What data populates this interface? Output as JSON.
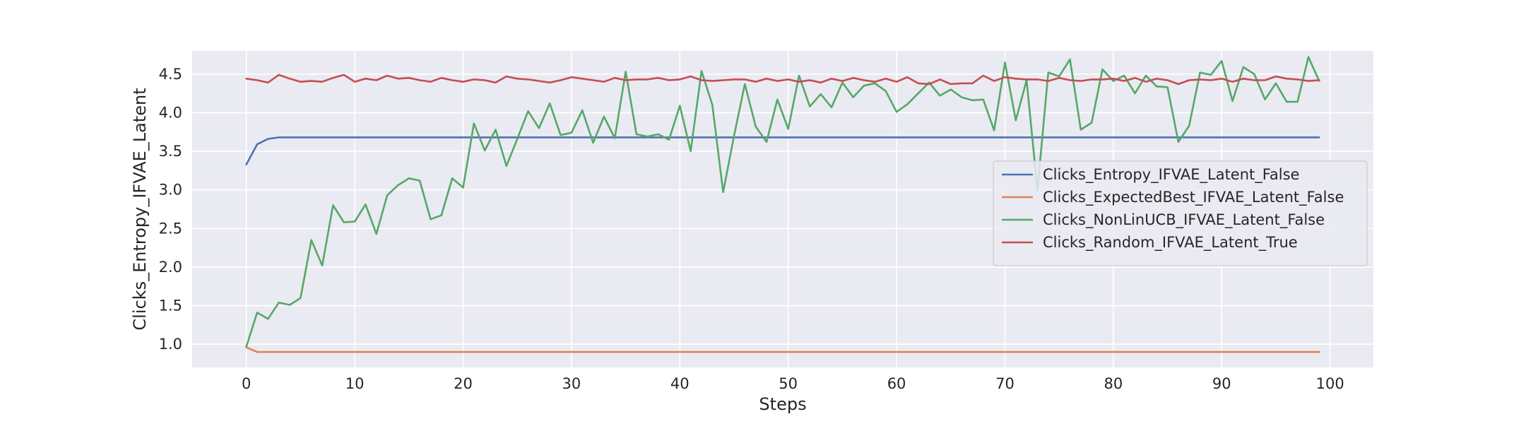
{
  "chart_data": {
    "type": "line",
    "title": "",
    "xlabel": "Steps",
    "ylabel": "Clicks_Entropy_IFVAE_Latent",
    "xlim": [
      -5,
      104
    ],
    "ylim": [
      0.7,
      4.8
    ],
    "xticks": [
      0,
      10,
      20,
      30,
      40,
      50,
      60,
      70,
      80,
      90,
      100
    ],
    "yticks": [
      1.0,
      1.5,
      2.0,
      2.5,
      3.0,
      3.5,
      4.0,
      4.5
    ],
    "grid": true,
    "legend_position": "center-right",
    "colors": {
      "background": "#eaeaf2",
      "grid": "#ffffff"
    },
    "x": [
      0,
      1,
      2,
      3,
      4,
      5,
      6,
      7,
      8,
      9,
      10,
      11,
      12,
      13,
      14,
      15,
      16,
      17,
      18,
      19,
      20,
      21,
      22,
      23,
      24,
      25,
      26,
      27,
      28,
      29,
      30,
      31,
      32,
      33,
      34,
      35,
      36,
      37,
      38,
      39,
      40,
      41,
      42,
      43,
      44,
      45,
      46,
      47,
      48,
      49,
      50,
      51,
      52,
      53,
      54,
      55,
      56,
      57,
      58,
      59,
      60,
      61,
      62,
      63,
      64,
      65,
      66,
      67,
      68,
      69,
      70,
      71,
      72,
      73,
      74,
      75,
      76,
      77,
      78,
      79,
      80,
      81,
      82,
      83,
      84,
      85,
      86,
      87,
      88,
      89,
      90,
      91,
      92,
      93,
      94,
      95,
      96,
      97,
      98,
      99
    ],
    "series": [
      {
        "name": "Clicks_Entropy_IFVAE_Latent_False",
        "color": "#4c72b0",
        "values": [
          3.33,
          3.59,
          3.66,
          3.68,
          3.68,
          3.68,
          3.68,
          3.68,
          3.68,
          3.68,
          3.68,
          3.68,
          3.68,
          3.68,
          3.68,
          3.68,
          3.68,
          3.68,
          3.68,
          3.68,
          3.68,
          3.68,
          3.68,
          3.68,
          3.68,
          3.68,
          3.68,
          3.68,
          3.68,
          3.68,
          3.68,
          3.68,
          3.68,
          3.68,
          3.68,
          3.68,
          3.68,
          3.68,
          3.68,
          3.68,
          3.68,
          3.68,
          3.68,
          3.68,
          3.68,
          3.68,
          3.68,
          3.68,
          3.68,
          3.68,
          3.68,
          3.68,
          3.68,
          3.68,
          3.68,
          3.68,
          3.68,
          3.68,
          3.68,
          3.68,
          3.68,
          3.68,
          3.68,
          3.68,
          3.68,
          3.68,
          3.68,
          3.68,
          3.68,
          3.68,
          3.68,
          3.68,
          3.68,
          3.68,
          3.68,
          3.68,
          3.68,
          3.68,
          3.68,
          3.68,
          3.68,
          3.68,
          3.68,
          3.68,
          3.68,
          3.68,
          3.68,
          3.68,
          3.68,
          3.68,
          3.68,
          3.68,
          3.68,
          3.68,
          3.68,
          3.68,
          3.68,
          3.68,
          3.68,
          3.68
        ]
      },
      {
        "name": "Clicks_ExpectedBest_IFVAE_Latent_False",
        "color": "#dd8452",
        "values": [
          0.96,
          0.9,
          0.9,
          0.9,
          0.9,
          0.9,
          0.9,
          0.9,
          0.9,
          0.9,
          0.9,
          0.9,
          0.9,
          0.9,
          0.9,
          0.9,
          0.9,
          0.9,
          0.9,
          0.9,
          0.9,
          0.9,
          0.9,
          0.9,
          0.9,
          0.9,
          0.9,
          0.9,
          0.9,
          0.9,
          0.9,
          0.9,
          0.9,
          0.9,
          0.9,
          0.9,
          0.9,
          0.9,
          0.9,
          0.9,
          0.9,
          0.9,
          0.9,
          0.9,
          0.9,
          0.9,
          0.9,
          0.9,
          0.9,
          0.9,
          0.9,
          0.9,
          0.9,
          0.9,
          0.9,
          0.9,
          0.9,
          0.9,
          0.9,
          0.9,
          0.9,
          0.9,
          0.9,
          0.9,
          0.9,
          0.9,
          0.9,
          0.9,
          0.9,
          0.9,
          0.9,
          0.9,
          0.9,
          0.9,
          0.9,
          0.9,
          0.9,
          0.9,
          0.9,
          0.9,
          0.9,
          0.9,
          0.9,
          0.9,
          0.9,
          0.9,
          0.9,
          0.9,
          0.9,
          0.9,
          0.9,
          0.9,
          0.9,
          0.9,
          0.9,
          0.9,
          0.9,
          0.9,
          0.9,
          0.9
        ]
      },
      {
        "name": "Clicks_NonLinUCB_IFVAE_Latent_False",
        "color": "#55a868",
        "values": [
          0.97,
          1.41,
          1.33,
          1.54,
          1.51,
          1.6,
          2.35,
          2.02,
          2.8,
          2.58,
          2.59,
          2.81,
          2.43,
          2.93,
          3.06,
          3.15,
          3.12,
          2.62,
          2.67,
          3.15,
          3.03,
          3.86,
          3.51,
          3.78,
          3.31,
          3.66,
          4.02,
          3.8,
          4.12,
          3.71,
          3.74,
          4.03,
          3.61,
          3.95,
          3.67,
          4.53,
          3.72,
          3.69,
          3.72,
          3.65,
          4.09,
          3.5,
          4.54,
          4.1,
          2.97,
          3.7,
          4.37,
          3.82,
          3.62,
          4.17,
          3.79,
          4.48,
          4.08,
          4.24,
          4.07,
          4.39,
          4.2,
          4.35,
          4.38,
          4.28,
          4.01,
          4.11,
          4.25,
          4.39,
          4.22,
          4.3,
          4.2,
          4.16,
          4.17,
          3.77,
          4.65,
          3.9,
          4.42,
          3.0,
          4.52,
          4.47,
          4.69,
          3.78,
          3.87,
          4.56,
          4.41,
          4.48,
          4.25,
          4.48,
          4.34,
          4.33,
          3.62,
          3.83,
          4.52,
          4.49,
          4.67,
          4.15,
          4.59,
          4.5,
          4.17,
          4.38,
          4.14,
          4.14,
          4.72,
          4.41
        ]
      },
      {
        "name": "Clicks_Random_IFVAE_Latent_True",
        "color": "#c44e52",
        "values": [
          4.44,
          4.42,
          4.39,
          4.49,
          4.44,
          4.4,
          4.41,
          4.4,
          4.45,
          4.49,
          4.4,
          4.44,
          4.42,
          4.48,
          4.44,
          4.45,
          4.42,
          4.4,
          4.45,
          4.42,
          4.4,
          4.43,
          4.42,
          4.39,
          4.47,
          4.44,
          4.43,
          4.41,
          4.39,
          4.42,
          4.46,
          4.44,
          4.42,
          4.4,
          4.45,
          4.42,
          4.43,
          4.43,
          4.45,
          4.42,
          4.43,
          4.47,
          4.42,
          4.41,
          4.42,
          4.43,
          4.43,
          4.4,
          4.44,
          4.41,
          4.43,
          4.4,
          4.42,
          4.39,
          4.44,
          4.41,
          4.45,
          4.42,
          4.4,
          4.44,
          4.4,
          4.46,
          4.38,
          4.37,
          4.43,
          4.37,
          4.38,
          4.38,
          4.48,
          4.41,
          4.46,
          4.44,
          4.43,
          4.43,
          4.41,
          4.45,
          4.42,
          4.41,
          4.43,
          4.43,
          4.44,
          4.41,
          4.45,
          4.4,
          4.44,
          4.42,
          4.37,
          4.42,
          4.43,
          4.42,
          4.44,
          4.4,
          4.44,
          4.42,
          4.42,
          4.47,
          4.44,
          4.43,
          4.41,
          4.42
        ]
      }
    ]
  }
}
